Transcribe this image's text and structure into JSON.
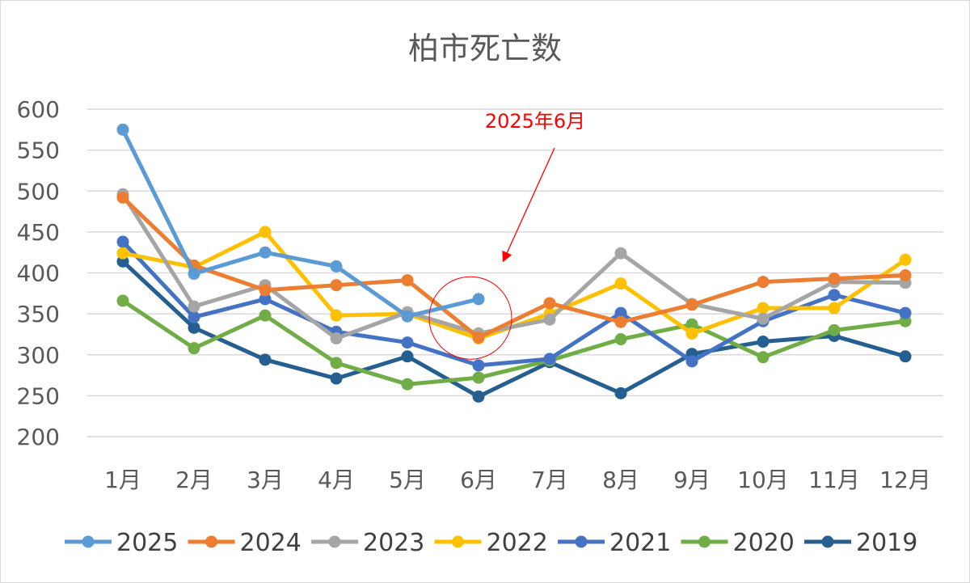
{
  "chart_data": {
    "type": "line",
    "title": "柏市死亡数",
    "categories": [
      "1月",
      "2月",
      "3月",
      "4月",
      "5月",
      "6月",
      "7月",
      "8月",
      "9月",
      "10月",
      "11月",
      "12月"
    ],
    "ylim": [
      200,
      600
    ],
    "yticks": [
      200,
      250,
      300,
      350,
      400,
      450,
      500,
      550,
      600
    ],
    "grid": true,
    "legend_position": "bottom",
    "series": [
      {
        "name": "2025",
        "color": "#5b9bd5",
        "values": [
          575,
          399,
          425,
          408,
          347,
          368,
          null,
          null,
          null,
          null,
          null,
          null
        ]
      },
      {
        "name": "2024",
        "color": "#ed7d31",
        "values": [
          492,
          409,
          379,
          385,
          391,
          321,
          363,
          340,
          361,
          389,
          393,
          397
        ]
      },
      {
        "name": "2023",
        "color": "#a5a5a5",
        "values": [
          496,
          359,
          385,
          320,
          352,
          326,
          343,
          424,
          362,
          344,
          389,
          388
        ]
      },
      {
        "name": "2022",
        "color": "#ffc000",
        "values": [
          424,
          407,
          450,
          348,
          350,
          320,
          350,
          387,
          326,
          357,
          357,
          416
        ]
      },
      {
        "name": "2021",
        "color": "#4472c4",
        "values": [
          438,
          346,
          368,
          328,
          315,
          287,
          295,
          351,
          292,
          341,
          373,
          351
        ]
      },
      {
        "name": "2020",
        "color": "#70ad47",
        "values": [
          366,
          308,
          348,
          290,
          264,
          272,
          293,
          319,
          337,
          297,
          330,
          341
        ]
      },
      {
        "name": "2019",
        "color": "#255e91",
        "values": [
          414,
          333,
          294,
          271,
          298,
          249,
          291,
          253,
          301,
          316,
          323,
          298
        ]
      }
    ],
    "annotation": {
      "text": "2025年6月",
      "color": "#ff0000",
      "target_category": "6月",
      "target_value": 345
    }
  }
}
